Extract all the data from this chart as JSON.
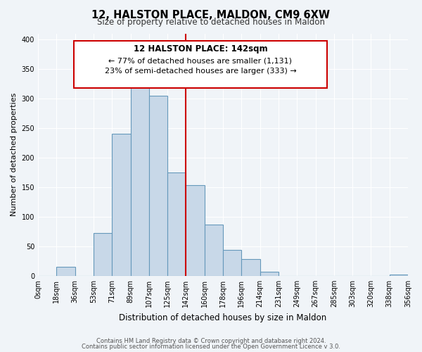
{
  "title": "12, HALSTON PLACE, MALDON, CM9 6XW",
  "subtitle": "Size of property relative to detached houses in Maldon",
  "xlabel": "Distribution of detached houses by size in Maldon",
  "ylabel": "Number of detached properties",
  "footer_line1": "Contains HM Land Registry data © Crown copyright and database right 2024.",
  "footer_line2": "Contains public sector information licensed under the Open Government Licence v 3.0.",
  "bin_labels": [
    "0sqm",
    "18sqm",
    "36sqm",
    "53sqm",
    "71sqm",
    "89sqm",
    "107sqm",
    "125sqm",
    "142sqm",
    "160sqm",
    "178sqm",
    "196sqm",
    "214sqm",
    "231sqm",
    "249sqm",
    "267sqm",
    "285sqm",
    "303sqm",
    "320sqm",
    "338sqm",
    "356sqm"
  ],
  "bar_values": [
    0,
    15,
    0,
    72,
    240,
    335,
    305,
    175,
    153,
    87,
    44,
    28,
    7,
    0,
    0,
    0,
    0,
    0,
    0,
    2
  ],
  "bar_color": "#c8d8e8",
  "bar_edge_color": "#6699bb",
  "vline_x": 8,
  "vline_color": "#cc0000",
  "ylim": [
    0,
    410
  ],
  "yticks": [
    0,
    50,
    100,
    150,
    200,
    250,
    300,
    350,
    400
  ],
  "annotation_title": "12 HALSTON PLACE: 142sqm",
  "annotation_line2": "← 77% of detached houses are smaller (1,131)",
  "annotation_line3": "23% of semi-detached houses are larger (333) →",
  "annotation_box_color": "#ffffff",
  "annotation_box_edge": "#cc0000",
  "bg_color": "#f0f4f8"
}
